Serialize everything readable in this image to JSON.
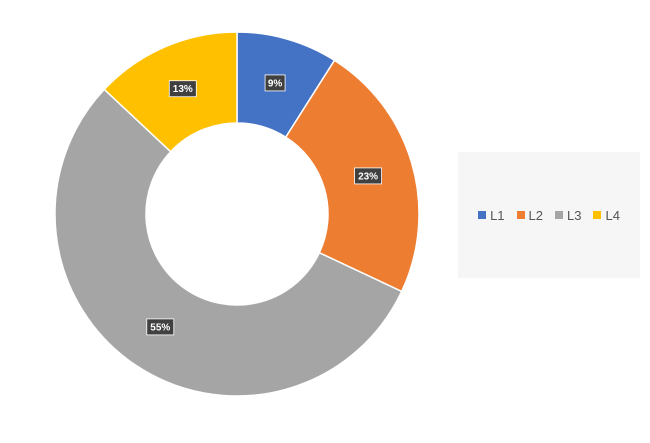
{
  "chart_data": {
    "type": "pie",
    "variant": "donut",
    "title": "",
    "categories": [
      "L1",
      "L2",
      "L3",
      "L4"
    ],
    "values": [
      9,
      23,
      55,
      13
    ],
    "data_labels": [
      "9%",
      "23%",
      "55%",
      "13%"
    ],
    "colors": [
      "#4472C4",
      "#ED7D31",
      "#A5A5A5",
      "#FFC000"
    ],
    "legend": {
      "placement": "right",
      "entries": [
        "L1",
        "L2",
        "L3",
        "L4"
      ]
    }
  }
}
